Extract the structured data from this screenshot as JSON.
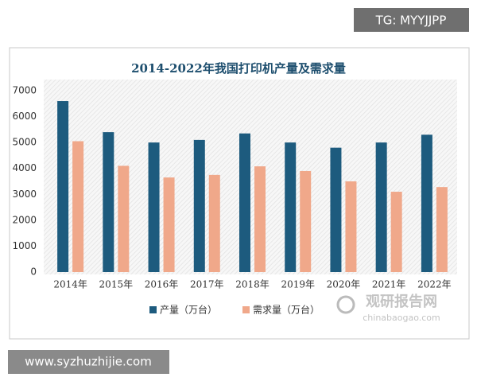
{
  "chart_data": {
    "type": "bar",
    "title": "2014-2022年我国打印机产量及需求量",
    "categories": [
      "2014年",
      "2015年",
      "2016年",
      "2017年",
      "2018年",
      "2019年",
      "2020年",
      "2021年",
      "2022年"
    ],
    "series": [
      {
        "name": "产量（万台）",
        "color": "#1d5b7e",
        "values": [
          6600,
          5400,
          5000,
          5100,
          5350,
          5000,
          4800,
          5000,
          5300
        ]
      },
      {
        "name": "需求量（万台）",
        "color": "#f0a88a",
        "values": [
          5050,
          4100,
          3650,
          3750,
          4080,
          3900,
          3500,
          3100,
          3280
        ]
      }
    ],
    "ylim": [
      0,
      7000
    ],
    "yticks": [
      0,
      1000,
      2000,
      3000,
      4000,
      5000,
      6000,
      7000
    ],
    "grid": false,
    "legend": "bottom"
  },
  "watermarks": {
    "top_right": "TG: MYYJJPP",
    "bottom_left": "www.syzhuzhijie.com",
    "logo": "观研报告网",
    "logo_url": "chinabaogao.com"
  }
}
